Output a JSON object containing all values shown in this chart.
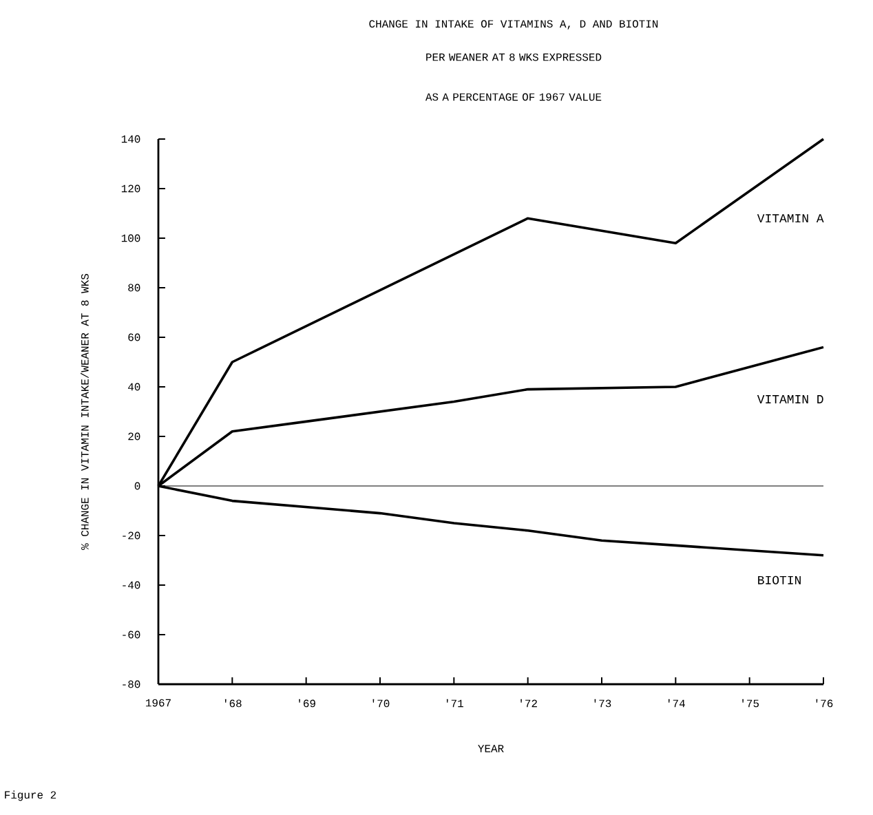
{
  "chart_data": {
    "type": "line",
    "title": "CHANGE IN INTAKE OF VITAMINS A, D AND BIOTIN",
    "subtitle": "PER WEANER AT 8 WKS EXPRESSED AS A PERCENTAGE OF 1967 VALUE",
    "xlabel": "YEAR",
    "ylabel": "% CHANGE IN VITAMIN INTAKE/WEANER AT 8 WKS",
    "annotations": [
      "Figure 2"
    ],
    "series": [
      {
        "name": "VITAMIN A",
        "color": "#000000",
        "x": [
          1967,
          1968,
          1972,
          1974,
          1976
        ],
        "values": [
          0,
          50,
          108,
          98,
          140
        ]
      },
      {
        "name": "VITAMIN D",
        "color": "#000000",
        "x": [
          1967,
          1968,
          1969,
          1971,
          1972,
          1974,
          1976
        ],
        "values": [
          0,
          22,
          26,
          34,
          39,
          40,
          56
        ]
      },
      {
        "name": "BIOTIN",
        "color": "#000000",
        "x": [
          1967,
          1968,
          1970,
          1971,
          1972,
          1973,
          1974,
          1976
        ],
        "values": [
          0,
          -6,
          -11,
          -15,
          -18,
          -22,
          -24,
          -28
        ]
      }
    ],
    "xlim": [
      1967,
      1976
    ],
    "ylim": [
      -80,
      140
    ],
    "xticks": [
      {
        "value": 1967,
        "label": "1967"
      },
      {
        "value": 1968,
        "label": "'68"
      },
      {
        "value": 1969,
        "label": "'69"
      },
      {
        "value": 1970,
        "label": "'70"
      },
      {
        "value": 1971,
        "label": "'71"
      },
      {
        "value": 1972,
        "label": "'72"
      },
      {
        "value": 1973,
        "label": "'73"
      },
      {
        "value": 1974,
        "label": "'74"
      },
      {
        "value": 1975,
        "label": "'75"
      },
      {
        "value": 1976,
        "label": "'76"
      }
    ],
    "yticks": [
      -80,
      -60,
      -40,
      -20,
      0,
      20,
      40,
      60,
      80,
      100,
      120,
      140
    ],
    "ref_lines": [
      {
        "axis": "y",
        "value": 0,
        "color": "#000000"
      }
    ],
    "grid": false,
    "legend": false,
    "marker": "none",
    "line_style": "solid"
  }
}
